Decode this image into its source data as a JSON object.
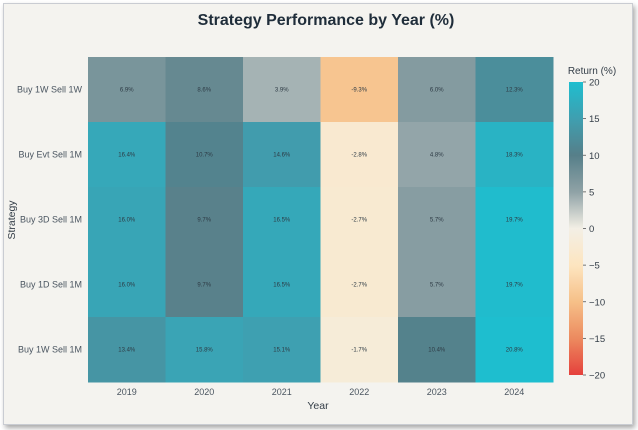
{
  "chart_data": {
    "type": "heatmap",
    "title": "Strategy Performance by Year (%)",
    "xlabel": "Year",
    "ylabel": "Strategy",
    "x": [
      "2019",
      "2020",
      "2021",
      "2022",
      "2023",
      "2024"
    ],
    "y": [
      "Buy 1W Sell 1W",
      "Buy Evt Sell 1M",
      "Buy 3D Sell 1M",
      "Buy 1D Sell 1M",
      "Buy 1W Sell 1M"
    ],
    "values": [
      [
        6.9,
        8.6,
        3.9,
        -9.3,
        6.0,
        12.3
      ],
      [
        16.4,
        10.7,
        14.6,
        -2.8,
        4.8,
        18.3
      ],
      [
        16.0,
        9.7,
        16.5,
        -2.7,
        5.7,
        19.7
      ],
      [
        16.0,
        9.7,
        16.5,
        -2.7,
        5.7,
        19.7
      ],
      [
        13.4,
        15.8,
        15.1,
        -1.7,
        10.4,
        20.8
      ]
    ],
    "cell_labels": [
      [
        "6.9%",
        "8.6%",
        "3.9%",
        "-9.3%",
        "6.0%",
        "12.3%"
      ],
      [
        "16.4%",
        "10.7%",
        "14.6%",
        "-2.8%",
        "4.8%",
        "18.3%"
      ],
      [
        "16.0%",
        "9.7%",
        "16.5%",
        "-2.7%",
        "5.7%",
        "19.7%"
      ],
      [
        "16.0%",
        "9.7%",
        "16.5%",
        "-2.7%",
        "5.7%",
        "19.7%"
      ],
      [
        "13.4%",
        "15.8%",
        "15.1%",
        "-1.7%",
        "10.4%",
        "20.8%"
      ]
    ],
    "colorbar": {
      "title": "Return (%)",
      "range": [
        -20,
        20
      ],
      "ticks": [
        "20",
        "15",
        "10",
        "5",
        "0",
        "−5",
        "−10",
        "−15",
        "−20"
      ],
      "tick_values": [
        20,
        15,
        10,
        5,
        0,
        -5,
        -10,
        -15,
        -20
      ]
    },
    "colors": {
      "scale": [
        "#e5403c",
        "#ec8a5f",
        "#f6c088",
        "#fde5c0",
        "#f3efe5",
        "#8fa2a6",
        "#567f89",
        "#3f9fb0",
        "#1ebecf"
      ],
      "background": "#f4f3ef"
    }
  }
}
